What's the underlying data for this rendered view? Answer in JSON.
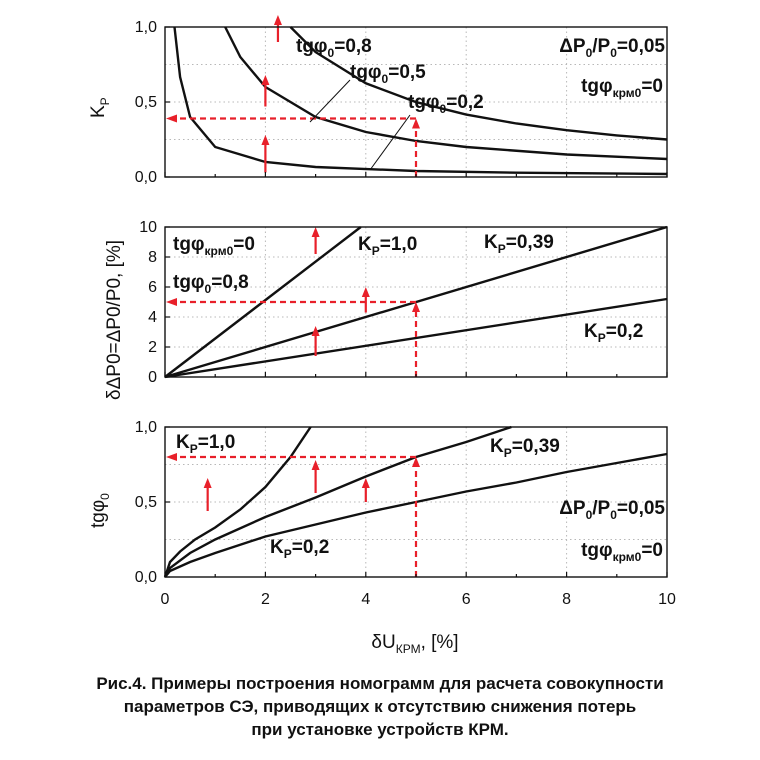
{
  "caption": {
    "line1": "Рис.4. Примеры построения номограмм для расчета совокупности",
    "line2": "параметров СЭ, приводящих к отсутствию снижения потерь",
    "line3": "при установке устройств КРМ."
  },
  "chart_data": [
    {
      "type": "line",
      "ylabel_main": "K",
      "ylabel_sub": "P",
      "xlim": [
        0,
        10
      ],
      "ylim": [
        0,
        1.0
      ],
      "y_ticks": [
        "0,0",
        "0,5",
        "1,0"
      ],
      "grid": true,
      "series": [
        {
          "name": "tgφ0=0,8",
          "x": [
            2.5,
            3,
            4,
            5,
            6,
            7,
            8,
            9,
            10
          ],
          "y": [
            1.0,
            0.8326,
            0.6245,
            0.4996,
            0.4163,
            0.3568,
            0.3122,
            0.2775,
            0.2498
          ]
        },
        {
          "name": "tgφ0=0,5",
          "x": [
            1.2,
            1.5,
            2,
            3,
            4,
            5,
            6,
            8,
            10
          ],
          "y": [
            1.0,
            0.8,
            0.6,
            0.4,
            0.3,
            0.24,
            0.2,
            0.15,
            0.12
          ]
        },
        {
          "name": "tgφ0=0,2",
          "x": [
            0.19,
            0.3,
            0.5,
            1,
            2,
            3,
            5,
            7,
            10
          ],
          "y": [
            1.0,
            0.6667,
            0.4,
            0.2,
            0.1,
            0.0667,
            0.04,
            0.0286,
            0.02
          ]
        }
      ],
      "annotations": {
        "tg08": {
          "main": "tgφ",
          "sub": "0",
          "value": "=0,8"
        },
        "tg05": {
          "main": "tgφ",
          "sub": "0",
          "value": "=0,5"
        },
        "tg02": {
          "main": "tgφ",
          "sub": "0",
          "value": "=0,2"
        },
        "dp_main1": "ΔP",
        "dp_sub1": "0",
        "dp_main2": "/P",
        "dp_sub2": "0",
        "dp_value": "=0,05",
        "tgkrm_main": "tgφ",
        "tgkrm_sub": "крм0",
        "tgkrm_value": "=0"
      }
    },
    {
      "type": "line",
      "ylabel": "δΔP0=ΔP0/P0, [%]",
      "xlim": [
        0,
        10
      ],
      "ylim": [
        0,
        10
      ],
      "y_ticks": [
        "0",
        "2",
        "4",
        "6",
        "8",
        "10"
      ],
      "grid": true,
      "series": [
        {
          "name": "KP=1,0",
          "x": [
            0,
            3.9
          ],
          "y": [
            0,
            10
          ]
        },
        {
          "name": "KP=0,39",
          "x": [
            0,
            10
          ],
          "y": [
            0,
            10
          ]
        },
        {
          "name": "KP=0,2",
          "x": [
            0,
            10
          ],
          "y": [
            0,
            5.2
          ]
        }
      ],
      "annotations": {
        "tgkrm_main": "tgφ",
        "tgkrm_sub": "крм0",
        "tgkrm_value": "=0",
        "tg08_main": "tgφ",
        "tg08_sub": "0",
        "tg08_value": "=0,8",
        "kp10_main": "K",
        "kp10_sub": "P",
        "kp10_value": "=1,0",
        "kp039_main": "K",
        "kp039_sub": "P",
        "kp039_value": "=0,39",
        "kp02_main": "K",
        "kp02_sub": "P",
        "kp02_value": "=0,2"
      }
    },
    {
      "type": "line",
      "ylabel_main": "tgφ",
      "ylabel_sub": "0",
      "xlabel_main": "δU",
      "xlabel_sub": "КРМ",
      "xlabel_tail": ", [%]",
      "xlim": [
        0,
        10
      ],
      "ylim": [
        0,
        1.0
      ],
      "x_ticks": [
        "0",
        "2",
        "4",
        "6",
        "8",
        "10"
      ],
      "y_ticks": [
        "0,0",
        "0,5",
        "1,0"
      ],
      "grid": true,
      "series": [
        {
          "name": "KP=1,0",
          "x": [
            0,
            0.1,
            0.3,
            0.6,
            1,
            1.5,
            2,
            2.5,
            2.9
          ],
          "y": [
            0,
            0.1,
            0.17,
            0.25,
            0.33,
            0.45,
            0.6,
            0.8,
            1.0
          ]
        },
        {
          "name": "KP=0,39",
          "x": [
            0,
            0.1,
            0.5,
            1,
            2,
            3,
            4,
            5,
            6,
            6.9
          ],
          "y": [
            0,
            0.06,
            0.16,
            0.25,
            0.4,
            0.53,
            0.67,
            0.8,
            0.9,
            1.0
          ]
        },
        {
          "name": "KP=0,2",
          "x": [
            0,
            0.1,
            0.5,
            1,
            2,
            3,
            4,
            5,
            6,
            7,
            8,
            9,
            10
          ],
          "y": [
            0,
            0.04,
            0.1,
            0.16,
            0.27,
            0.35,
            0.43,
            0.5,
            0.57,
            0.63,
            0.7,
            0.76,
            0.82
          ]
        }
      ],
      "annotations": {
        "kp10_main": "K",
        "kp10_sub": "P",
        "kp10_value": "=1,0",
        "kp039_main": "K",
        "kp039_sub": "P",
        "kp039_value": "=0,39",
        "kp02_main": "K",
        "kp02_sub": "P",
        "kp02_value": "=0,2",
        "dp_main1": "ΔP",
        "dp_sub1": "0",
        "dp_main2": "/P",
        "dp_sub2": "0",
        "dp_value": "=0,05",
        "tgkrm_main": "tgφ",
        "tgkrm_sub": "крм0",
        "tgkrm_value": "=0"
      }
    }
  ]
}
